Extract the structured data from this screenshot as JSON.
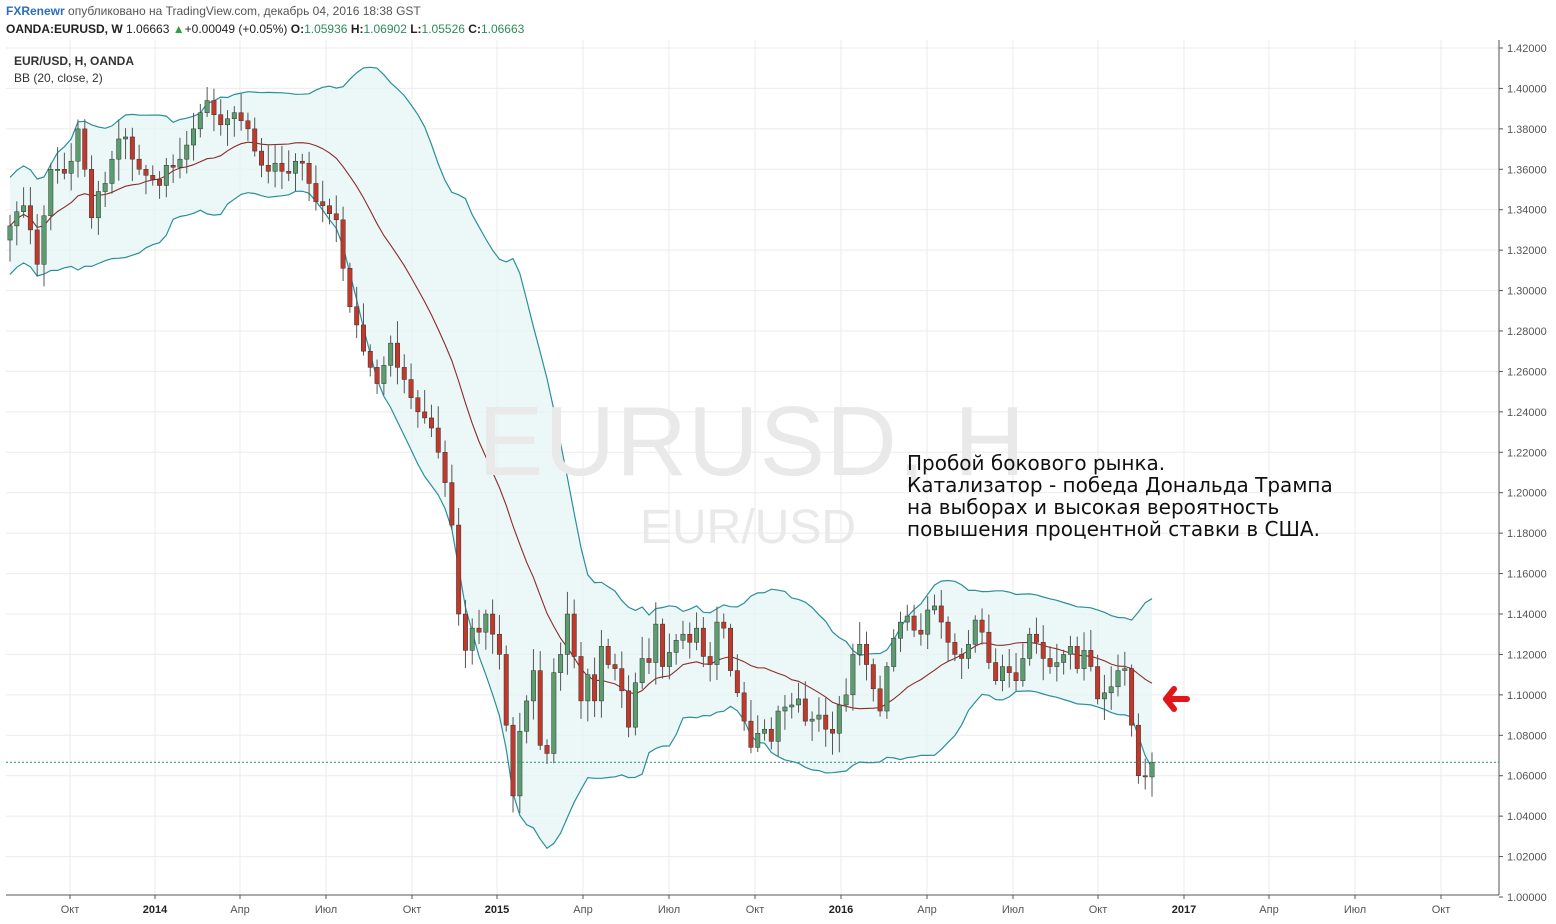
{
  "header": {
    "author": "FXRenewr",
    "published": "опубликовано на TradingView.com, декабрь 04, 2016 18:38 GST",
    "symbol": "OANDA:EURUSD, W",
    "last": "1.06663",
    "change": "+0.00049 (+0.05%)",
    "o_label": "O:",
    "o": "1.05936",
    "h_label": "H:",
    "h": "1.06902",
    "l_label": "L:",
    "l": "1.05526",
    "c_label": "C:",
    "c": "1.06663"
  },
  "legend": {
    "symbol": "EUR/USD, H, OANDA",
    "indicator": "BB (20, close, 2)"
  },
  "watermark": {
    "main": "EURUSD, H",
    "sub": "EUR/USD"
  },
  "annotation": "Пробой бокового рынка.\nКатализатор - победа Дональда Трампа\nна выборах и высокая вероятность\nповышения процентной ставки в США.",
  "colors": {
    "up": "#5b9d6e",
    "down": "#c0392b",
    "band_line": "#2a8f9a",
    "band_fill": "#e6f4f4",
    "basis": "#8b2b2b",
    "arrow": "#e0161b",
    "grid": "#ebebeb"
  },
  "chart_data": {
    "type": "candlestick",
    "ylim": [
      1.0,
      1.42
    ],
    "yticks": [
      "1.42000",
      "1.40000",
      "1.38000",
      "1.36000",
      "1.34000",
      "1.32000",
      "1.30000",
      "1.28000",
      "1.26000",
      "1.24000",
      "1.22000",
      "1.20000",
      "1.18000",
      "1.16000",
      "1.14000",
      "1.12000",
      "1.10000",
      "1.08000",
      "1.06000",
      "1.04000",
      "1.02000",
      "1.00000"
    ],
    "xticks": [
      "Окт",
      "2014",
      "Апр",
      "Июл",
      "Окт",
      "2015",
      "Апр",
      "Июл",
      "Окт",
      "2016",
      "Апр",
      "Июл",
      "Окт",
      "2017",
      "Апр",
      "Июл",
      "Окт"
    ],
    "last_price": 1.06663,
    "closes": [
      1.332,
      1.339,
      1.342,
      1.33,
      1.313,
      1.337,
      1.36,
      1.36,
      1.358,
      1.364,
      1.38,
      1.36,
      1.336,
      1.349,
      1.353,
      1.365,
      1.375,
      1.376,
      1.365,
      1.36,
      1.357,
      1.355,
      1.352,
      1.362,
      1.361,
      1.365,
      1.372,
      1.38,
      1.388,
      1.394,
      1.387,
      1.382,
      1.385,
      1.388,
      1.384,
      1.38,
      1.369,
      1.362,
      1.359,
      1.363,
      1.359,
      1.358,
      1.364,
      1.363,
      1.353,
      1.344,
      1.342,
      1.338,
      1.335,
      1.311,
      1.292,
      1.283,
      1.27,
      1.262,
      1.254,
      1.263,
      1.274,
      1.262,
      1.256,
      1.247,
      1.24,
      1.237,
      1.232,
      1.22,
      1.205,
      1.184,
      1.14,
      1.122,
      1.133,
      1.131,
      1.14,
      1.13,
      1.12,
      1.085,
      1.05,
      1.082,
      1.097,
      1.112,
      1.075,
      1.071,
      1.111,
      1.12,
      1.14,
      1.119,
      1.097,
      1.11,
      1.097,
      1.124,
      1.115,
      1.113,
      1.102,
      1.084,
      1.106,
      1.118,
      1.116,
      1.135,
      1.114,
      1.121,
      1.127,
      1.13,
      1.126,
      1.133,
      1.119,
      1.115,
      1.136,
      1.133,
      1.112,
      1.101,
      1.087,
      1.074,
      1.081,
      1.083,
      1.077,
      1.092,
      1.094,
      1.095,
      1.098,
      1.087,
      1.088,
      1.09,
      1.083,
      1.081,
      1.095,
      1.1,
      1.12,
      1.125,
      1.115,
      1.103,
      1.092,
      1.114,
      1.128,
      1.136,
      1.139,
      1.132,
      1.13,
      1.142,
      1.144,
      1.136,
      1.126,
      1.12,
      1.118,
      1.125,
      1.137,
      1.131,
      1.116,
      1.107,
      1.114,
      1.111,
      1.107,
      1.118,
      1.13,
      1.126,
      1.118,
      1.114,
      1.116,
      1.12,
      1.124,
      1.113,
      1.122,
      1.114,
      1.098,
      1.101,
      1.104,
      1.112,
      1.113,
      1.085,
      1.06,
      1.0594,
      1.0666
    ]
  }
}
